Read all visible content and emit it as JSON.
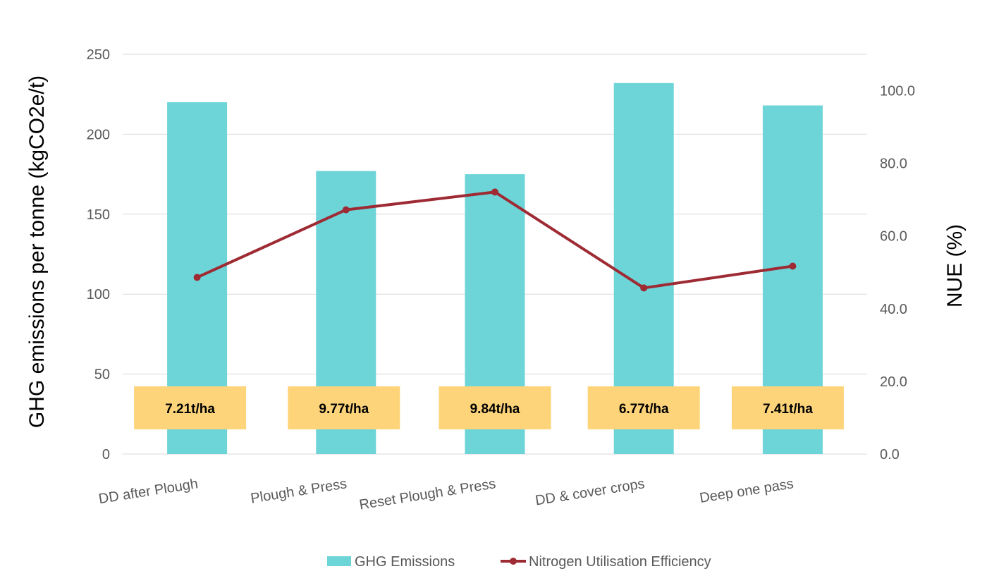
{
  "chart_data": {
    "type": "bar",
    "categories": [
      "DD after Plough",
      "Plough & Press",
      "Reset Plough & Press",
      "DD & cover crops",
      "Deep one pass"
    ],
    "series": [
      {
        "name": "GHG Emissions",
        "type": "bar",
        "axis": "left",
        "values": [
          220,
          177,
          175,
          232,
          218
        ]
      },
      {
        "name": "Nitrogen Utilisation Efficiency",
        "type": "line",
        "axis": "right",
        "values": [
          48.6,
          67.2,
          72.1,
          45.7,
          51.7
        ]
      }
    ],
    "bar_labels": [
      "7.21t/ha",
      "9.77t/ha",
      "9.84t/ha",
      "6.77t/ha",
      "7.41t/ha"
    ],
    "ylabel": "GHG emissions per tonne (kgCO2e/t)",
    "y2label": "NUE (%)",
    "ylim": [
      0,
      250
    ],
    "y2lim": [
      0,
      110
    ],
    "yticks": [
      "0",
      "50",
      "100",
      "150",
      "200",
      "250"
    ],
    "y2ticks": [
      "0.0",
      "20.0",
      "40.0",
      "60.0",
      "80.0",
      "100.0"
    ],
    "grid": true,
    "legend_position": "bottom",
    "colors": {
      "bar": "#6DD4D8",
      "line": "#9E2A33",
      "label_box": "#FDD47A",
      "grid": "#D9D9D9"
    }
  }
}
